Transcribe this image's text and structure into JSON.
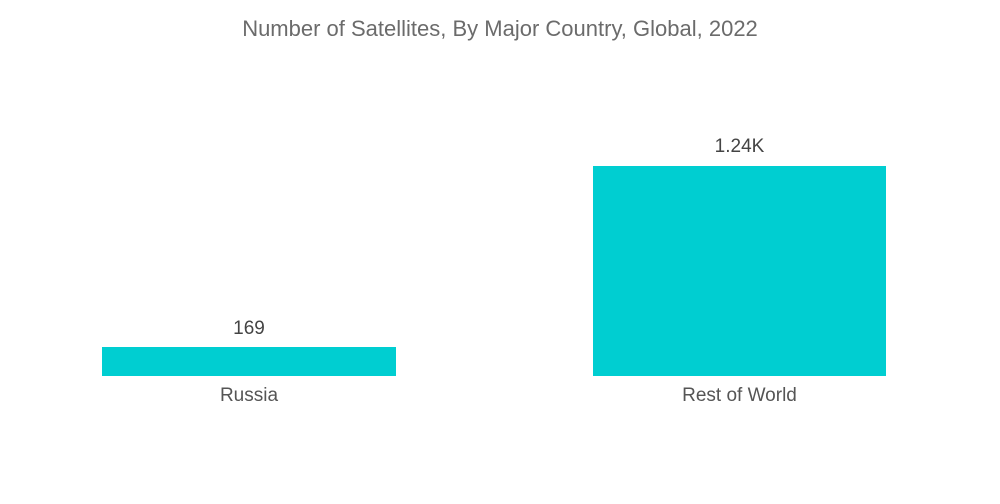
{
  "chart_data": {
    "type": "bar",
    "title": "Number of Satellites, By Major Country, Global, 2022",
    "categories": [
      "Russia",
      "Rest of World"
    ],
    "values": [
      169,
      1240
    ],
    "data_labels": [
      "169",
      "1.24K"
    ],
    "xlabel": "",
    "ylabel": "",
    "ylim": [
      0,
      1240
    ],
    "grid": false,
    "legend": null,
    "colors": {
      "bar": "#00ced1"
    }
  }
}
